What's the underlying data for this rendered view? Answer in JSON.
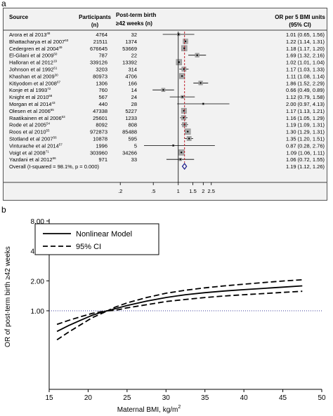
{
  "panels": {
    "a_label": "a",
    "b_label": "b"
  },
  "chart_data": [
    {
      "type": "forest",
      "columns": {
        "source": "Source",
        "participants_l1": "Participants",
        "participants_l2": "(n)",
        "post_term_l1": "Post-term birth",
        "post_term_l2": "≥42 weeks (n)",
        "or_l1": "OR per 5 BMI units",
        "or_l2": "(95% CI)"
      },
      "studies": [
        {
          "source": "Arora et al 2013",
          "ref": "48",
          "participants": "4764",
          "post_term": "32",
          "or": 1.01,
          "lo": 0.65,
          "hi": 1.56,
          "label": "1.01 (0.65, 1.56)",
          "weight": 0.3
        },
        {
          "source": "Bhattacharya et al 2007",
          "ref": "63",
          "participants": "21511",
          "post_term": "1374",
          "or": 1.22,
          "lo": 1.14,
          "hi": 1.31,
          "label": "1.22 (1.14, 1.31)",
          "weight": 0.8
        },
        {
          "source": "Cedergren et al 2004",
          "ref": "49",
          "participants": "676645",
          "post_term": "53669",
          "or": 1.18,
          "lo": 1.17,
          "hi": 1.2,
          "label": "1.18 (1.17, 1.20)",
          "weight": 1.0
        },
        {
          "source": "El-Gilani et al 2009",
          "ref": "50",
          "participants": "787",
          "post_term": "22",
          "or": 1.69,
          "lo": 1.32,
          "hi": 2.16,
          "label": "1.69 (1.32, 2.16)",
          "weight": 0.6
        },
        {
          "source": "Halloran et al 2012",
          "ref": "19",
          "participants": "339126",
          "post_term": "13392",
          "or": 1.02,
          "lo": 1.01,
          "hi": 1.04,
          "label": "1.02 (1.01, 1.04)",
          "weight": 1.0
        },
        {
          "source": "Johnson et al 1992",
          "ref": "51",
          "participants": "3203",
          "post_term": "314",
          "or": 1.17,
          "lo": 1.03,
          "hi": 1.33,
          "label": "1.17 (1.03, 1.33)",
          "weight": 0.7
        },
        {
          "source": "Khashan et al 2009",
          "ref": "30",
          "participants": "80973",
          "post_term": "4706",
          "or": 1.11,
          "lo": 1.08,
          "hi": 1.14,
          "label": "1.11 (1.08, 1.14)",
          "weight": 0.95
        },
        {
          "source": "Kitiyodom et al 2008",
          "ref": "67",
          "participants": "1306",
          "post_term": "166",
          "or": 1.86,
          "lo": 1.52,
          "hi": 2.29,
          "label": "1.86 (1.52, 2.29)",
          "weight": 0.6
        },
        {
          "source": "Konje et al 1993",
          "ref": "72",
          "participants": "760",
          "post_term": "14",
          "or": 0.66,
          "lo": 0.49,
          "hi": 0.89,
          "label": "0.66 (0.49, 0.89)",
          "weight": 0.5
        },
        {
          "source": "Knight et al 2010",
          "ref": "68",
          "participants": "567",
          "post_term": "24",
          "or": 1.12,
          "lo": 0.79,
          "hi": 1.58,
          "label": "1.12 (0.79, 1.58)",
          "weight": 0.35
        },
        {
          "source": "Morgan et al 2014",
          "ref": "43",
          "participants": "440",
          "post_term": "28",
          "or": 2.0,
          "lo": 0.97,
          "hi": 4.13,
          "label": "2.00 (0.97, 4.13)",
          "weight": 0.1
        },
        {
          "source": "Olesen et al 2006",
          "ref": "65",
          "participants": "47338",
          "post_term": "5227",
          "or": 1.17,
          "lo": 1.13,
          "hi": 1.21,
          "label": "1.17 (1.13, 1.21)",
          "weight": 0.9
        },
        {
          "source": "Raatikainen et al 2006",
          "ref": "53",
          "participants": "25601",
          "post_term": "1233",
          "or": 1.16,
          "lo": 1.05,
          "hi": 1.29,
          "label": "1.16 (1.05, 1.29)",
          "weight": 0.75
        },
        {
          "source": "Rode et al 2005",
          "ref": "54",
          "participants": "8092",
          "post_term": "808",
          "or": 1.19,
          "lo": 1.09,
          "hi": 1.31,
          "label": "1.19 (1.09, 1.31)",
          "weight": 0.75
        },
        {
          "source": "Roos et al 2010",
          "ref": "55",
          "participants": "972873",
          "post_term": "85488",
          "or": 1.3,
          "lo": 1.29,
          "hi": 1.31,
          "label": "1.30 (1.29, 1.31)",
          "weight": 1.0
        },
        {
          "source": "Stotland et al 2007",
          "ref": "56",
          "participants": "10878",
          "post_term": "595",
          "or": 1.35,
          "lo": 1.2,
          "hi": 1.51,
          "label": "1.35 (1.20, 1.51)",
          "weight": 0.7
        },
        {
          "source": "Vinturache et al 2014",
          "ref": "57",
          "participants": "1996",
          "post_term": "5",
          "or": 0.87,
          "lo": 0.28,
          "hi": 2.76,
          "label": "0.87 (0.28, 2.76)",
          "weight": 0.1
        },
        {
          "source": "Voigt et al 2008",
          "ref": "71",
          "participants": "303960",
          "post_term": "34266",
          "or": 1.09,
          "lo": 1.06,
          "hi": 1.11,
          "label": "1.09 (1.06, 1.11)",
          "weight": 1.0
        },
        {
          "source": "Yazdani et al 2012",
          "ref": "66",
          "participants": "971",
          "post_term": "33",
          "or": 1.06,
          "lo": 0.72,
          "hi": 1.55,
          "label": "1.06 (0.72, 1.55)",
          "weight": 0.3
        }
      ],
      "overall": {
        "label_text": "Overall  (I-squared = 98.1%, p = 0.000)",
        "or": 1.19,
        "lo": 1.12,
        "hi": 1.26,
        "label": "1.19 (1.12, 1.26)"
      },
      "x_scale": "log",
      "x_range": [
        0.12,
        3.3
      ],
      "x_ticks": [
        {
          "value": 0.2,
          "label": ".2"
        },
        {
          "value": 0.5,
          "label": ".5"
        },
        {
          "value": 1,
          "label": "1"
        },
        {
          "value": 1.5,
          "label": "1.5"
        },
        {
          "value": 2,
          "label": "2"
        },
        {
          "value": 2.5,
          "label": "2.5"
        }
      ],
      "reference_line": 1,
      "pooled_line": 1.19
    },
    {
      "type": "line",
      "xlabel": "Maternal BMI, kg/m",
      "xlabel_sup": "2",
      "ylabel": "OR of post-term birth ≥42 weeks",
      "xlim": [
        15,
        50
      ],
      "ylim_display": [
        0.5,
        8.0
      ],
      "y_scale": "log",
      "x_ticks": [
        15,
        20,
        25,
        30,
        35,
        40,
        45,
        50
      ],
      "y_ticks": [
        {
          "value": 1.0,
          "label": "1.00"
        },
        {
          "value": 2.0,
          "label": "2.00"
        },
        {
          "value": 4.0,
          "label": "4.00"
        },
        {
          "value": 8.0,
          "label": "8.00"
        }
      ],
      "reference_line": 1.0,
      "legend_position": "top-left",
      "x": [
        16,
        17.5,
        19,
        20.5,
        22,
        22.5,
        23.5,
        25,
        27.5,
        30,
        32.5,
        35,
        37.5,
        40,
        42.5,
        45,
        47.5
      ],
      "series": [
        {
          "name": "Nonlinear Model",
          "style": "solid",
          "values": [
            0.62,
            0.71,
            0.8,
            0.9,
            0.98,
            1.0,
            1.05,
            1.13,
            1.25,
            1.36,
            1.45,
            1.52,
            1.58,
            1.63,
            1.68,
            1.73,
            1.78
          ]
        },
        {
          "name": "95% CI",
          "style": "dashed",
          "bound": "upper",
          "values": [
            0.73,
            0.8,
            0.87,
            0.94,
            0.99,
            1.0,
            1.09,
            1.2,
            1.36,
            1.5,
            1.61,
            1.7,
            1.78,
            1.85,
            1.92,
            1.99,
            2.05
          ]
        },
        {
          "name": "95% CI",
          "style": "dashed",
          "bound": "lower",
          "values": [
            0.51,
            0.61,
            0.72,
            0.85,
            0.96,
            1.0,
            1.01,
            1.07,
            1.15,
            1.24,
            1.3,
            1.36,
            1.41,
            1.45,
            1.49,
            1.53,
            1.57
          ]
        }
      ]
    }
  ]
}
